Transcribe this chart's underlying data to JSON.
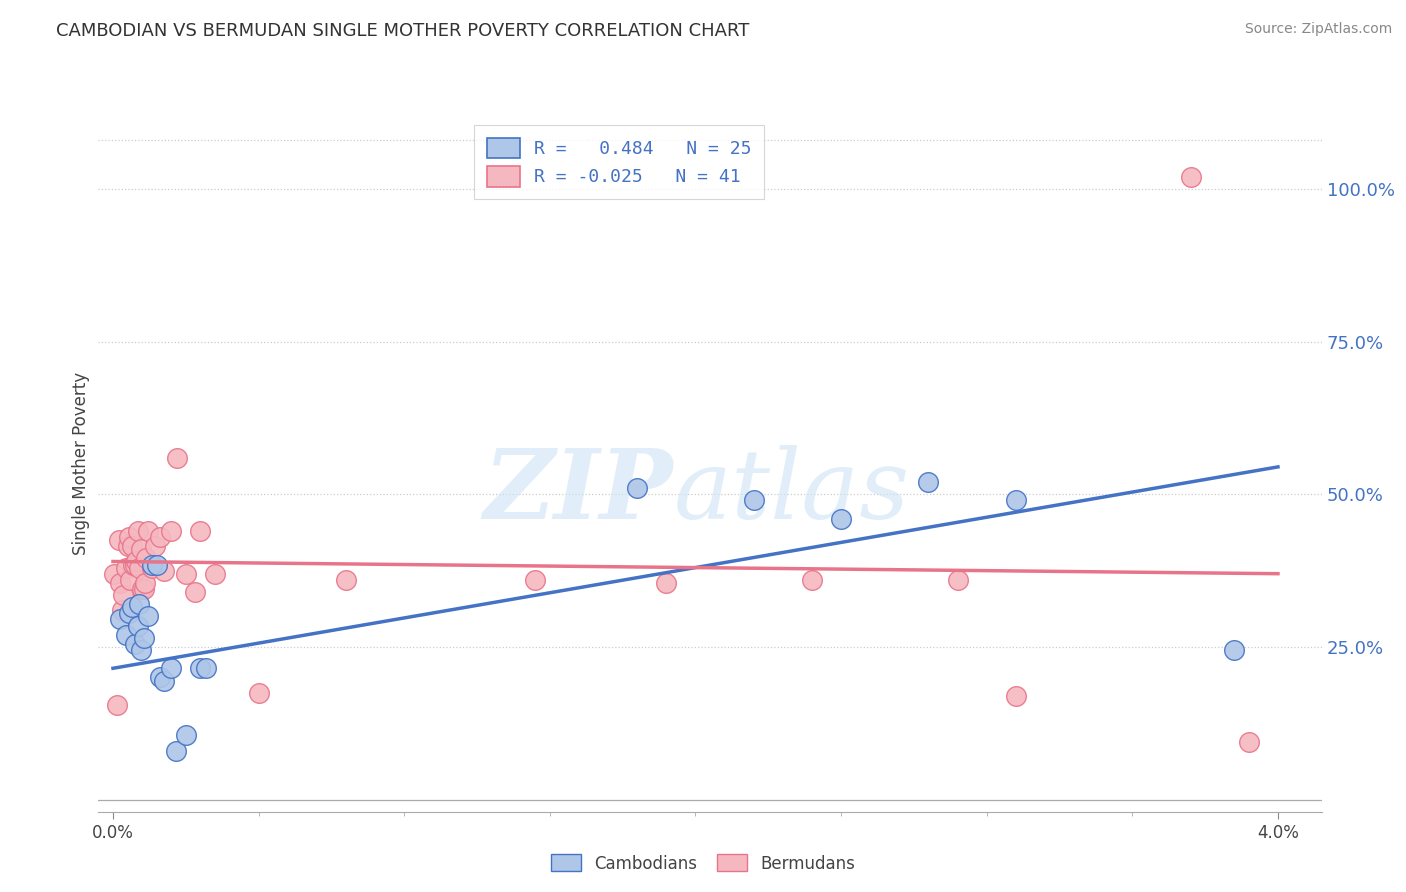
{
  "title": "CAMBODIAN VS BERMUDAN SINGLE MOTHER POVERTY CORRELATION CHART",
  "source": "Source: ZipAtlas.com",
  "ylabel": "Single Mother Poverty",
  "legend_label1": "Cambodians",
  "legend_label2": "Bermudans",
  "r1": "0.484",
  "n1": "25",
  "r2": "-0.025",
  "n2": "41",
  "cambodian_color": "#aec6e8",
  "bermudan_color": "#f5b8c0",
  "blue_line_color": "#4472c4",
  "pink_line_color": "#e8748a",
  "blue_trend_x": [
    0.0,
    0.04
  ],
  "blue_trend_y": [
    0.215,
    0.545
  ],
  "pink_trend_x": [
    0.0,
    0.04
  ],
  "pink_trend_y": [
    0.39,
    0.37
  ],
  "xlim": [
    -0.0005,
    0.0415
  ],
  "ylim": [
    -0.02,
    1.12
  ],
  "y_tick_values": [
    0.25,
    0.5,
    0.75,
    1.0
  ],
  "y_tick_labels": [
    "25.0%",
    "50.0%",
    "75.0%",
    "100.0%"
  ],
  "cambodians_x": [
    0.00025,
    0.00045,
    0.00055,
    0.00065,
    0.00075,
    0.00085,
    0.0009,
    0.00095,
    0.00105,
    0.0012,
    0.00135,
    0.0015,
    0.0016,
    0.00175,
    0.002,
    0.00215,
    0.0025,
    0.003,
    0.0032,
    0.018,
    0.022,
    0.025,
    0.028,
    0.031,
    0.0385
  ],
  "cambodians_y": [
    0.295,
    0.27,
    0.305,
    0.315,
    0.255,
    0.285,
    0.32,
    0.245,
    0.265,
    0.3,
    0.385,
    0.385,
    0.2,
    0.195,
    0.215,
    0.08,
    0.105,
    0.215,
    0.215,
    0.51,
    0.49,
    0.46,
    0.52,
    0.49,
    0.245
  ],
  "bermudans_x": [
    5e-05,
    0.00015,
    0.0002,
    0.00025,
    0.0003,
    0.00035,
    0.00045,
    0.0005,
    0.00055,
    0.0006,
    0.00065,
    0.0007,
    0.00075,
    0.0008,
    0.00085,
    0.0009,
    0.00095,
    0.001,
    0.00105,
    0.0011,
    0.00115,
    0.0012,
    0.00135,
    0.00145,
    0.0016,
    0.00175,
    0.002,
    0.0022,
    0.0025,
    0.0028,
    0.003,
    0.0035,
    0.005,
    0.008,
    0.0145,
    0.019,
    0.024,
    0.029,
    0.031,
    0.037,
    0.039
  ],
  "bermudans_y": [
    0.37,
    0.155,
    0.425,
    0.355,
    0.31,
    0.335,
    0.38,
    0.415,
    0.43,
    0.36,
    0.415,
    0.385,
    0.385,
    0.39,
    0.44,
    0.38,
    0.41,
    0.345,
    0.345,
    0.355,
    0.395,
    0.44,
    0.38,
    0.415,
    0.43,
    0.375,
    0.44,
    0.56,
    0.37,
    0.34,
    0.44,
    0.37,
    0.175,
    0.36,
    0.36,
    0.355,
    0.36,
    0.36,
    0.17,
    1.02,
    0.095
  ]
}
